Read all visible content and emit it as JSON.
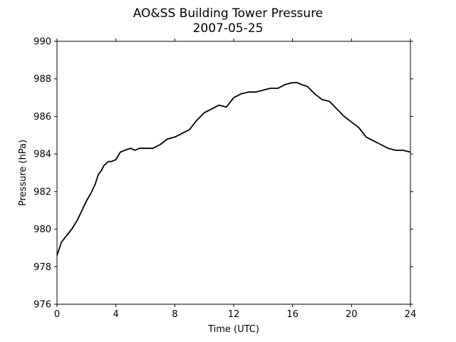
{
  "chart_data": {
    "type": "line",
    "title": "AO&SS Building Tower Pressure",
    "subtitle": "2007-05-25",
    "xlabel": "Time (UTC)",
    "ylabel": "Pressure (hPa)",
    "xlim": [
      0,
      24
    ],
    "ylim": [
      976,
      990
    ],
    "xticks": [
      "0",
      "4",
      "8",
      "12",
      "16",
      "20",
      "24"
    ],
    "yticks": [
      "976",
      "978",
      "980",
      "982",
      "984",
      "986",
      "988",
      "990"
    ],
    "grid": false,
    "line_color": "#000000",
    "series": [
      {
        "x": [
          0,
          0.3,
          0.6,
          1.0,
          1.4,
          1.7,
          2.0,
          2.3,
          2.6,
          2.8,
          3.0,
          3.2,
          3.5,
          3.7,
          4.0,
          4.3,
          4.6,
          5.0,
          5.3,
          5.6,
          6.0,
          6.5,
          7.0,
          7.5,
          8.0,
          8.5,
          9.0,
          9.5,
          10.0,
          10.5,
          11.0,
          11.5,
          12.0,
          12.5,
          13.0,
          13.5,
          14.0,
          14.5,
          15.0,
          15.5,
          16.0,
          16.3,
          16.6,
          17.0,
          17.5,
          18.0,
          18.5,
          19.0,
          19.5,
          20.0,
          20.5,
          21.0,
          21.5,
          22.0,
          22.5,
          23.0,
          23.5,
          24.0
        ],
        "values": [
          978.6,
          979.3,
          979.6,
          980.0,
          980.5,
          981.0,
          981.5,
          981.9,
          982.4,
          982.9,
          983.1,
          983.4,
          983.6,
          983.6,
          983.7,
          984.1,
          984.2,
          984.3,
          984.2,
          984.3,
          984.3,
          984.3,
          984.5,
          984.8,
          984.9,
          985.1,
          985.3,
          985.8,
          986.2,
          986.4,
          986.6,
          986.5,
          987.0,
          987.2,
          987.3,
          987.3,
          987.4,
          987.5,
          987.5,
          987.7,
          987.8,
          987.8,
          987.7,
          987.6,
          987.2,
          986.9,
          986.8,
          986.4,
          986.0,
          985.7,
          985.4,
          984.9,
          984.7,
          984.5,
          984.3,
          984.2,
          984.2,
          984.1
        ]
      }
    ]
  }
}
